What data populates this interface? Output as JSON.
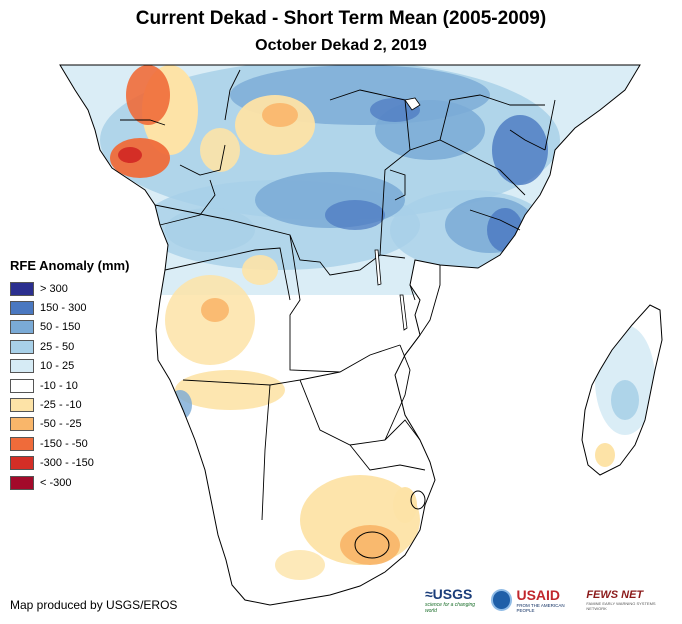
{
  "title": "Current Dekad - Short Term Mean (2005-2009)",
  "subtitle": "October Dekad 2, 2019",
  "legend": {
    "title": "RFE Anomaly (mm)",
    "items": [
      {
        "label": "> 300",
        "color": "#2b2f8f"
      },
      {
        "label": "150 - 300",
        "color": "#4a78c0"
      },
      {
        "label": "50 - 150",
        "color": "#7aaad6"
      },
      {
        "label": "25 - 50",
        "color": "#a8d0e8"
      },
      {
        "label": "10 - 25",
        "color": "#d6ebf5"
      },
      {
        "label": "-10 - 10",
        "color": "#ffffff"
      },
      {
        "label": "-25 - -10",
        "color": "#fde3a7"
      },
      {
        "label": "-50 - -25",
        "color": "#f9b66a"
      },
      {
        "label": "-150 - -50",
        "color": "#ef6b3a"
      },
      {
        "label": "-300 - -150",
        "color": "#d42e26"
      },
      {
        "label": "< -300",
        "color": "#a30a2a"
      }
    ]
  },
  "credit": "Map produced by USGS/EROS",
  "logos": {
    "usgs": "≈USGS",
    "usgs_tag": "science for a changing world",
    "usaid_pre": "US",
    "usaid_post": "AID",
    "usaid_tag": "FROM THE AMERICAN PEOPLE",
    "fews": "FEWS NET",
    "fews_tag": "FAMINE EARLY WARNING SYSTEMS NETWORK"
  }
}
